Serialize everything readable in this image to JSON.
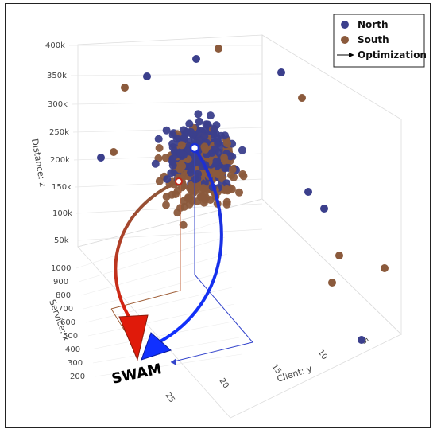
{
  "chart_data": {
    "type": "scatter",
    "projection": "3d",
    "title": "",
    "axes": {
      "x": {
        "label": "Service: x",
        "ticks": [
          200,
          300,
          400,
          500,
          600,
          700,
          800,
          900,
          1000
        ],
        "range": [
          200,
          1000
        ]
      },
      "y": {
        "label": "Client: y",
        "ticks": [
          5,
          10,
          15,
          20,
          25
        ],
        "range": [
          0,
          28
        ]
      },
      "z": {
        "label": "Distance: z",
        "ticks": [
          "50k",
          "100k",
          "150k",
          "200k",
          "250k",
          "300k",
          "350k",
          "400k"
        ],
        "tick_values": [
          50000,
          100000,
          150000,
          200000,
          250000,
          300000,
          350000,
          400000
        ],
        "range": [
          0,
          400000
        ]
      }
    },
    "grid": true,
    "legend": {
      "placement": "top-right"
    },
    "series": [
      {
        "name": "North",
        "color": "#3b3f8c",
        "marker": "circle",
        "count": 260
      },
      {
        "name": "South",
        "color": "#8b5a3c",
        "marker": "circle",
        "count": 240
      }
    ],
    "optimization_label": "Optimization",
    "target_label": "SWAM",
    "paths": [
      {
        "series": "North",
        "color": "#1a2fd6",
        "start": "cluster-center-north",
        "end": "SWAM"
      },
      {
        "series": "South",
        "color": "#c0281a",
        "start": "cluster-center-south",
        "end": "SWAM"
      }
    ]
  }
}
